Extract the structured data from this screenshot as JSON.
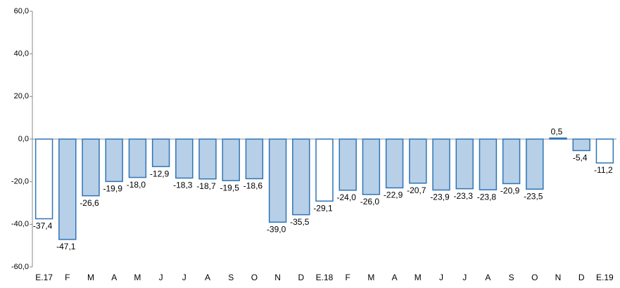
{
  "chart_data": {
    "type": "bar",
    "categories": [
      "E.17",
      "F",
      "M",
      "A",
      "M",
      "J",
      "J",
      "A",
      "S",
      "O",
      "N",
      "D",
      "E.18",
      "F",
      "M",
      "A",
      "M",
      "J",
      "J",
      "A",
      "S",
      "O",
      "N",
      "D",
      "E.19"
    ],
    "values": [
      -37.4,
      -47.1,
      -26.6,
      -19.9,
      -18.0,
      -12.9,
      -18.3,
      -18.7,
      -19.5,
      -18.6,
      -39.0,
      -35.5,
      -29.1,
      -24.0,
      -26.0,
      -22.9,
      -20.7,
      -23.9,
      -23.3,
      -23.8,
      -20.9,
      -23.5,
      0.5,
      -5.4,
      -11.2
    ],
    "value_labels": [
      "-37,4",
      "-47,1",
      "-26,6",
      "-19,9",
      "-18,0",
      "-12,9",
      "-18,3",
      "-18,7",
      "-19,5",
      "-18,6",
      "-39,0",
      "-35,5",
      "-29,1",
      "-24,0",
      "-26,0",
      "-22,9",
      "-20,7",
      "-23,9",
      "-23,3",
      "-23,8",
      "-20,9",
      "-23,5",
      "0,5",
      "-5,4",
      "-11,2"
    ],
    "colors": [
      "#ffffff",
      "#b8cfe8",
      "#b8cfe8",
      "#b8cfe8",
      "#b8cfe8",
      "#b8cfe8",
      "#b8cfe8",
      "#b8cfe8",
      "#b8cfe8",
      "#b8cfe8",
      "#b8cfe8",
      "#b8cfe8",
      "#ffffff",
      "#b8cfe8",
      "#b8cfe8",
      "#b8cfe8",
      "#b8cfe8",
      "#b8cfe8",
      "#b8cfe8",
      "#b8cfe8",
      "#b8cfe8",
      "#b8cfe8",
      "#b8cfe8",
      "#b8cfe8",
      "#ffffff"
    ],
    "edge_color": "#2e75b6",
    "ylim": [
      -60,
      60
    ],
    "yticks": [
      {
        "value": -60,
        "label": "-60,0"
      },
      {
        "value": -40,
        "label": "-40,0"
      },
      {
        "value": -20,
        "label": "-20,0"
      },
      {
        "value": 0,
        "label": "0,0"
      },
      {
        "value": 20,
        "label": "20,0"
      },
      {
        "value": 40,
        "label": "40,0"
      },
      {
        "value": 60,
        "label": "60,0"
      }
    ],
    "grid": false
  }
}
